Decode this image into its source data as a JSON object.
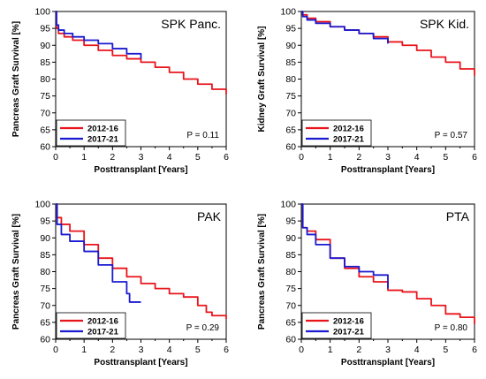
{
  "chart_data": [
    {
      "type": "line",
      "title": "SPK Panc.",
      "xlabel": "Posttransplant [Years]",
      "ylabel": "Pancreas Graft Survival [%]",
      "xlim": [
        0,
        6
      ],
      "ylim": [
        60,
        100
      ],
      "xticks": [
        0,
        1,
        2,
        3,
        4,
        5,
        6
      ],
      "yticks": [
        60,
        65,
        70,
        75,
        80,
        85,
        90,
        95,
        100
      ],
      "legend": "bottom-left",
      "annotation": "P = 0.11",
      "series": [
        {
          "name": "2012-16",
          "color": "#e8141b",
          "x": [
            0,
            0.03,
            0.1,
            0.3,
            0.6,
            1.0,
            1.5,
            2.0,
            2.5,
            3.0,
            3.5,
            4.0,
            4.5,
            5.0,
            5.5,
            6.0
          ],
          "y": [
            100,
            95,
            93.5,
            92.5,
            91.5,
            90,
            88.5,
            87,
            86,
            85,
            83.5,
            82,
            80,
            78.5,
            77,
            75.5
          ]
        },
        {
          "name": "2017-21",
          "color": "#1a1ad0",
          "x": [
            0,
            0.03,
            0.1,
            0.3,
            0.6,
            1.0,
            1.5,
            2.0,
            2.5,
            3.0
          ],
          "y": [
            100,
            96,
            94.5,
            93.5,
            92.5,
            91.5,
            90.5,
            89,
            87.5,
            86
          ]
        }
      ]
    },
    {
      "type": "line",
      "title": "SPK Kid.",
      "xlabel": "Posttransplant [Years]",
      "ylabel": "Kidney Graft Survival [%]",
      "xlim": [
        0,
        6
      ],
      "ylim": [
        60,
        100
      ],
      "xticks": [
        0,
        1,
        2,
        3,
        4,
        5,
        6
      ],
      "yticks": [
        60,
        65,
        70,
        75,
        80,
        85,
        90,
        95,
        100
      ],
      "legend": "bottom-left",
      "annotation": "P = 0.57",
      "series": [
        {
          "name": "2012-16",
          "color": "#e8141b",
          "x": [
            0,
            0.05,
            0.2,
            0.5,
            1.0,
            1.5,
            2.0,
            2.5,
            3.0,
            3.5,
            4.0,
            4.5,
            5.0,
            5.5,
            6.0
          ],
          "y": [
            100,
            99,
            98,
            97,
            95.5,
            94.5,
            93.5,
            92.5,
            91,
            90,
            88.5,
            86.5,
            85,
            83,
            81
          ]
        },
        {
          "name": "2017-21",
          "color": "#1a1ad0",
          "x": [
            0,
            0.05,
            0.2,
            0.5,
            1.0,
            1.5,
            2.0,
            2.5,
            3.0
          ],
          "y": [
            100,
            98.5,
            97.5,
            96.5,
            95.5,
            94.5,
            93.5,
            92,
            90.5
          ]
        }
      ]
    },
    {
      "type": "line",
      "title": "PAK",
      "xlabel": "Posttransplant [Years]",
      "ylabel": "Pancreas Graft Survival [%]",
      "xlim": [
        0,
        6
      ],
      "ylim": [
        60,
        100
      ],
      "xticks": [
        0,
        1,
        2,
        3,
        4,
        5,
        6
      ],
      "yticks": [
        60,
        65,
        70,
        75,
        80,
        85,
        90,
        95,
        100
      ],
      "legend": "bottom-left",
      "annotation": "P = 0.29",
      "series": [
        {
          "name": "2012-16",
          "color": "#e8141b",
          "x": [
            0,
            0.05,
            0.2,
            0.5,
            1.0,
            1.5,
            2.0,
            2.5,
            3.0,
            3.5,
            4.0,
            4.5,
            5.0,
            5.3,
            5.5,
            6.0
          ],
          "y": [
            100,
            96,
            94,
            92,
            88,
            84,
            81,
            78.5,
            76.5,
            75,
            73.5,
            72.5,
            70,
            68,
            67,
            66
          ]
        },
        {
          "name": "2017-21",
          "color": "#1a1ad0",
          "x": [
            0,
            0.05,
            0.2,
            0.5,
            1.0,
            1.5,
            2.0,
            2.5,
            2.6,
            3.0
          ],
          "y": [
            100,
            94,
            91,
            89,
            86,
            82,
            77,
            73.5,
            71,
            71
          ]
        }
      ]
    },
    {
      "type": "line",
      "title": "PTA",
      "xlabel": "Posttransplant [Years]",
      "ylabel": "Pancreas Graft Survival [%]",
      "xlim": [
        0,
        6
      ],
      "ylim": [
        60,
        100
      ],
      "xticks": [
        0,
        1,
        2,
        3,
        4,
        5,
        6
      ],
      "yticks": [
        60,
        65,
        70,
        75,
        80,
        85,
        90,
        95,
        100
      ],
      "legend": "bottom-left",
      "annotation": "P = 0.80",
      "series": [
        {
          "name": "2012-16",
          "color": "#e8141b",
          "x": [
            0,
            0.05,
            0.2,
            0.5,
            1.0,
            1.5,
            2.0,
            2.5,
            3.0,
            3.5,
            4.0,
            4.5,
            5.0,
            5.5,
            6.0
          ],
          "y": [
            100,
            93,
            92,
            89.5,
            84,
            81,
            78.5,
            77,
            74.5,
            74,
            72,
            70,
            67.5,
            66.5,
            64.5
          ]
        },
        {
          "name": "2017-21",
          "color": "#1a1ad0",
          "x": [
            0,
            0.05,
            0.2,
            0.5,
            1.0,
            1.5,
            2.0,
            2.5,
            3.0
          ],
          "y": [
            100,
            93,
            91,
            88,
            84,
            81.5,
            80,
            79,
            75
          ]
        }
      ]
    }
  ]
}
